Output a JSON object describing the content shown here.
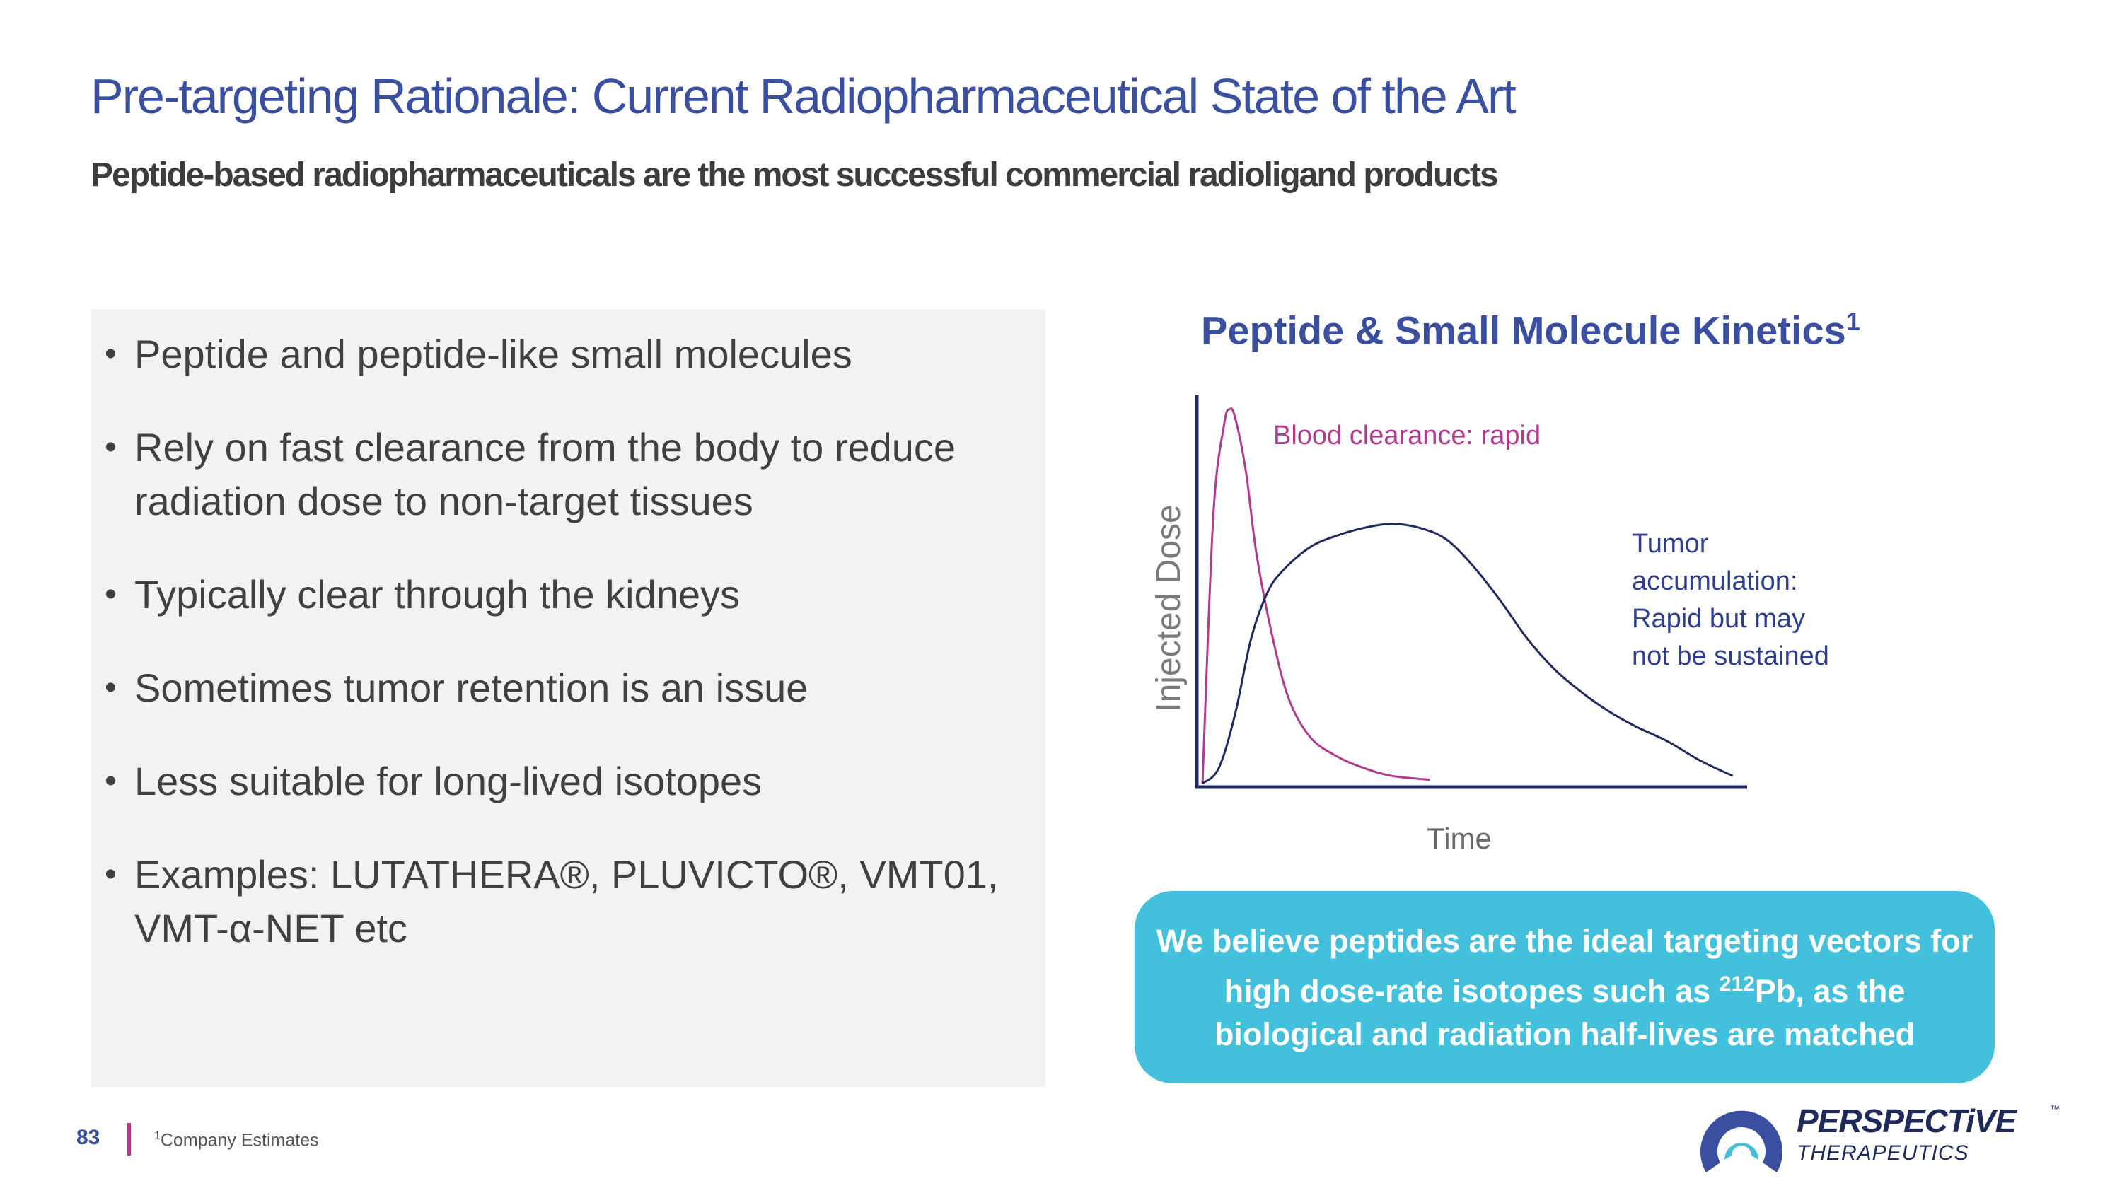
{
  "header": {
    "title": "Pre-targeting Rationale: Current Radiopharmaceutical State of the Art",
    "subtitle": "Peptide-based radiopharmaceuticals are the most successful commercial radioligand products"
  },
  "bullets": [
    {
      "lines": [
        "Peptide and peptide-like small molecules"
      ]
    },
    {
      "lines": [
        "Rely on fast clearance from the body to reduce",
        "radiation dose to non-target tissues"
      ]
    },
    {
      "lines": [
        "Typically clear through the kidneys"
      ]
    },
    {
      "lines": [
        "Sometimes tumor retention is an issue"
      ]
    },
    {
      "lines": [
        "Less suitable for long-lived isotopes"
      ]
    },
    {
      "lines": [
        "Examples: LUTATHERA®, PLUVICTO®, VMT01,",
        "VMT-α-NET etc"
      ]
    }
  ],
  "chart_data": {
    "type": "line",
    "title": "Peptide & Small Molecule Kinetics",
    "title_footnote": "1",
    "xlabel": "Time",
    "ylabel": "Injected Dose",
    "grid": false,
    "axis_ticks": false,
    "series": [
      {
        "name": "Blood clearance: rapid",
        "color": "#b03a8c",
        "x": [
          0,
          2,
          4,
          5,
          6,
          8,
          10,
          13,
          16,
          20,
          25,
          30,
          35,
          42
        ],
        "y": [
          0,
          70,
          94,
          98,
          96,
          82,
          60,
          38,
          22,
          12,
          7,
          4,
          2,
          1
        ]
      },
      {
        "name": "Tumor accumulation: Rapid but may not be sustained",
        "color": "#1f2a63",
        "x": [
          0,
          3,
          6,
          9,
          12,
          15,
          20,
          25,
          30,
          35,
          40,
          45,
          50,
          55,
          60,
          65,
          70,
          75,
          80,
          86,
          92,
          98
        ],
        "y": [
          0,
          4,
          18,
          38,
          50,
          56,
          62,
          65,
          67,
          68,
          67,
          64,
          57,
          48,
          38,
          30,
          24,
          19,
          15,
          11,
          6,
          2
        ]
      }
    ],
    "annotations": {
      "blood": [
        "Blood clearance: rapid"
      ],
      "tumor": [
        "Tumor",
        "accumulation:",
        "Rapid but may",
        "not be sustained"
      ]
    }
  },
  "callout": {
    "text_before": "We believe peptides are the ideal targeting vectors for high dose-rate isotopes such as ",
    "sup": "212",
    "text_after": "Pb, as the biological and radiation half-lives are matched"
  },
  "footer": {
    "page_number": "83",
    "footnote_marker": "1",
    "footnote_text": "Company Estimates"
  },
  "logo": {
    "name": "PERSPECTiVE",
    "tm": "™",
    "sub": "THERAPEUTICS",
    "colors": {
      "navy": "#1e2a5a",
      "blue": "#3a4fa0",
      "cyan": "#42c0dc",
      "magenta": "#b03a8c"
    }
  },
  "colors": {
    "title": "#3a4fa0",
    "subtitle": "#3d3d3d",
    "panel": "#f2f2f2",
    "callout": "#42c0dc"
  }
}
